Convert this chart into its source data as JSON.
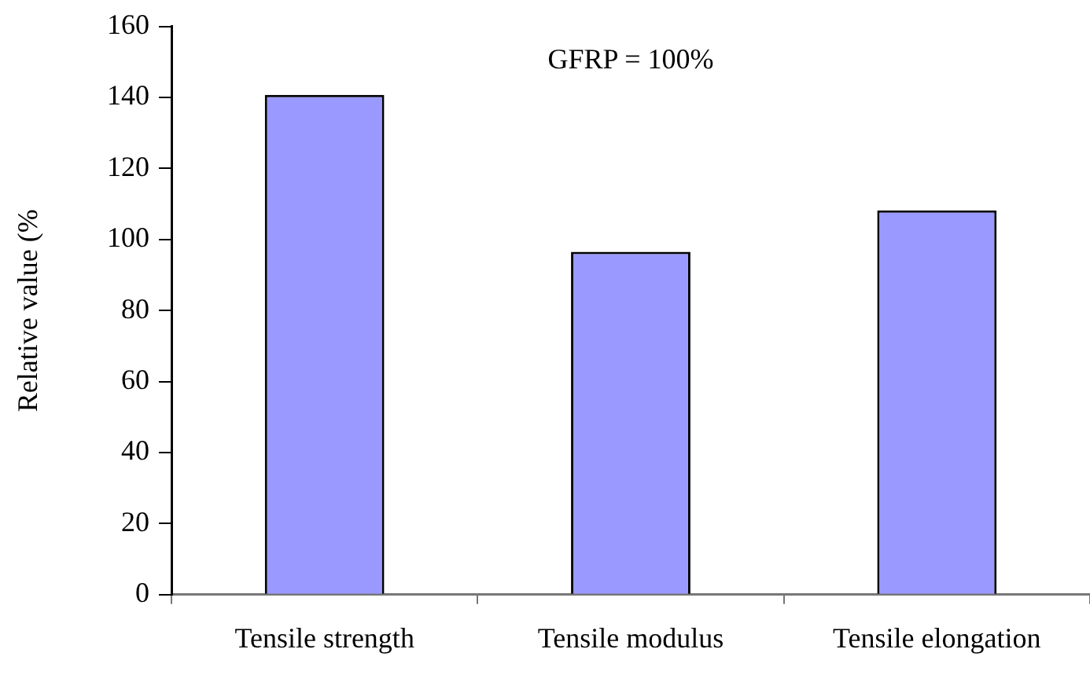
{
  "chart_data": {
    "type": "bar",
    "ylabel": "Relative value (%",
    "categories": [
      "Tensile strength",
      "Tensile modulus",
      "Tensile elongation"
    ],
    "values": [
      140.7,
      96.5,
      108.2
    ],
    "color": "#9999ff",
    "ylim": [
      0,
      160
    ],
    "yticks": [
      0,
      20,
      40,
      60,
      80,
      100,
      120,
      140,
      160
    ],
    "grid": false,
    "annotations": [
      "GFRP = 100%"
    ]
  }
}
